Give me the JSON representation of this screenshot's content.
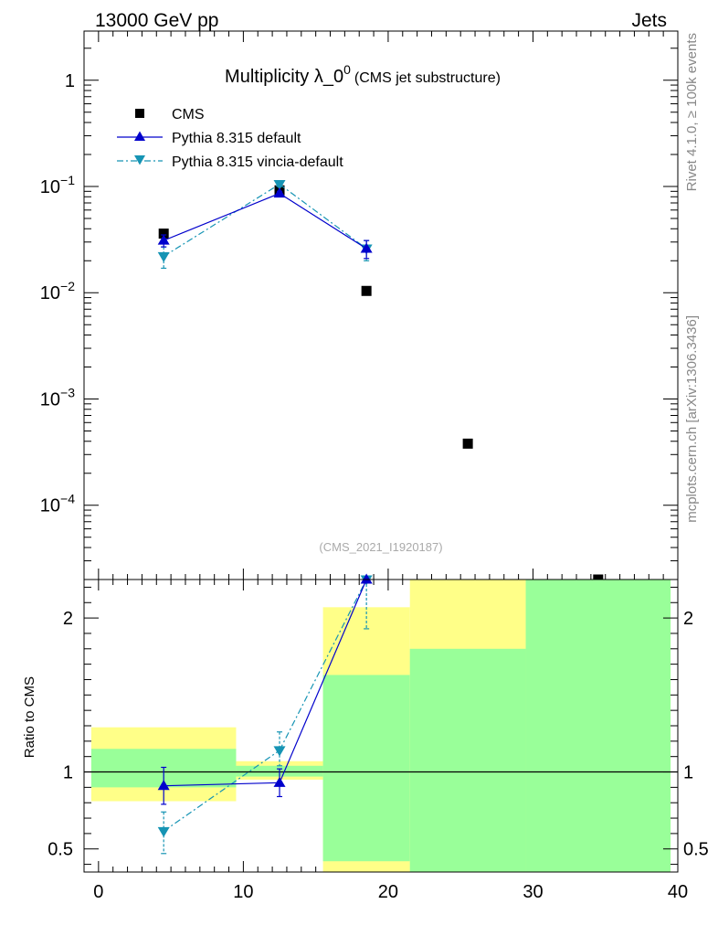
{
  "header": {
    "left": "13000 GeV pp",
    "right": "Jets"
  },
  "side_labels": {
    "rivet": "Rivet 4.1.0, ≥ 100k events",
    "mcplots": "mcplots.cern.ch [arXiv:1306.3436]"
  },
  "chart_data": [
    {
      "type": "scatter",
      "title_main": "Multiplicity λ_0",
      "title_sup": "0",
      "title_sub": "(CMS jet substructure)",
      "analysis_label": "(CMS_2021_I1920187)",
      "xlim": [
        -1,
        40
      ],
      "ylim_log": [
        2e-05,
        2.9
      ],
      "yscale": "log",
      "y_tick_labels": [
        {
          "base": "1",
          "exp": ""
        },
        {
          "base": "10",
          "exp": "−1"
        },
        {
          "base": "10",
          "exp": "−2"
        },
        {
          "base": "10",
          "exp": "−3"
        },
        {
          "base": "10",
          "exp": "−4"
        }
      ],
      "y_tick_values": [
        1,
        0.1,
        0.01,
        0.001,
        0.0001
      ],
      "legend": {
        "position": "top-left",
        "entries": [
          "CMS",
          "Pythia 8.315 default",
          "Pythia 8.315 vincia-default"
        ]
      },
      "series": [
        {
          "name": "CMS",
          "color": "#000000",
          "marker": "square",
          "x": [
            4.5,
            12.5,
            18.5,
            25.5,
            34.5
          ],
          "y": [
            0.036,
            0.092,
            0.0104,
            0.00038,
            1.95e-05
          ]
        },
        {
          "name": "Pythia 8.315 default",
          "color": "#0000cc",
          "marker": "triangle-up",
          "line": "solid",
          "x": [
            4.5,
            12.5,
            18.5
          ],
          "y": [
            0.031,
            0.086,
            0.026
          ],
          "yerr_lo": [
            0.027,
            0.082,
            0.021
          ],
          "yerr_hi": [
            0.035,
            0.09,
            0.031
          ]
        },
        {
          "name": "Pythia 8.315 vincia-default",
          "color": "#1694b4",
          "marker": "triangle-down",
          "line": "dash-dot",
          "x": [
            4.5,
            12.5,
            18.5
          ],
          "y": [
            0.022,
            0.105,
            0.026
          ],
          "yerr_lo": [
            0.017,
            0.1,
            0.02
          ],
          "yerr_hi": [
            0.027,
            0.11,
            0.031
          ]
        }
      ]
    },
    {
      "type": "line",
      "ylabel": "Ratio to CMS",
      "xlim": [
        -1,
        40
      ],
      "ylim": [
        0.35,
        2.25
      ],
      "x_tick_labels": [
        "0",
        "10",
        "20",
        "30",
        "40"
      ],
      "x_tick_values": [
        0,
        10,
        20,
        30,
        40
      ],
      "y_tick_labels": [
        "0.5",
        "1",
        "2"
      ],
      "y_tick_values": [
        0.5,
        1,
        2
      ],
      "reference_line": 1,
      "bands": [
        {
          "x0": -0.5,
          "x1": 9.5,
          "yellow_lo": 0.81,
          "yellow_hi": 1.29,
          "green_lo": 0.9,
          "green_hi": 1.15
        },
        {
          "x0": 9.5,
          "x1": 15.5,
          "yellow_lo": 0.95,
          "yellow_hi": 1.07,
          "green_lo": 0.97,
          "green_hi": 1.04
        },
        {
          "x0": 15.5,
          "x1": 21.5,
          "yellow_lo": 0.35,
          "yellow_hi": 2.07,
          "green_lo": 0.42,
          "green_hi": 1.63
        },
        {
          "x0": 21.5,
          "x1": 29.5,
          "yellow_lo": 0.35,
          "yellow_hi": 2.25,
          "green_lo": 0.35,
          "green_hi": 1.8
        },
        {
          "x0": 29.5,
          "x1": 39.5,
          "yellow_lo": 0.35,
          "yellow_hi": 2.25,
          "green_lo": 0.35,
          "green_hi": 2.25
        }
      ],
      "series": [
        {
          "name": "Pythia 8.315 default",
          "color": "#0000cc",
          "marker": "triangle-up",
          "line": "solid",
          "x": [
            4.5,
            12.5,
            18.5
          ],
          "y": [
            0.91,
            0.93,
            2.5
          ],
          "yerr_lo": [
            0.79,
            0.84,
            2.5
          ],
          "yerr_hi": [
            1.03,
            1.02,
            2.5
          ]
        },
        {
          "name": "Pythia 8.315 vincia-default",
          "color": "#1694b4",
          "marker": "triangle-down",
          "line": "dash-dot",
          "x": [
            4.5,
            12.5,
            18.5
          ],
          "y": [
            0.615,
            1.14,
            2.5
          ],
          "yerr_lo": [
            0.47,
            1.04,
            1.93
          ],
          "yerr_hi": [
            0.74,
            1.26,
            2.5
          ]
        }
      ]
    }
  ]
}
